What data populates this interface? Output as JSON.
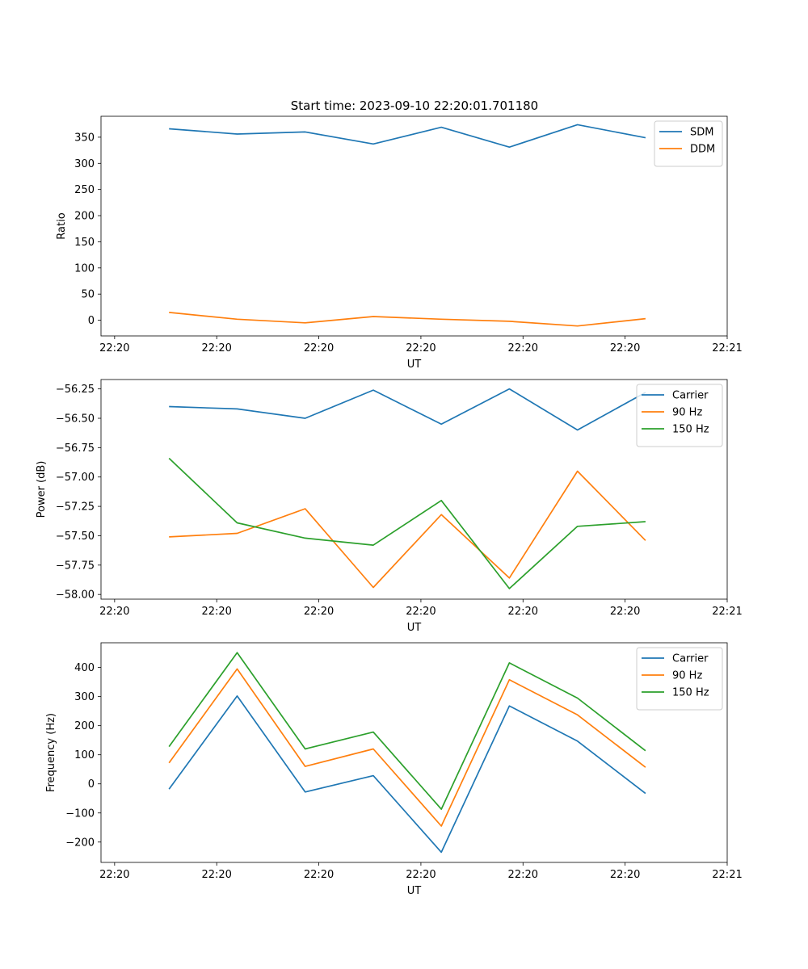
{
  "title": "Start time: 2023-09-10 22:20:01.701180",
  "colors": {
    "blue": "#1f77b4",
    "orange": "#ff7f0e",
    "green": "#2ca02c"
  },
  "chart_data": [
    {
      "type": "line",
      "xlabel": "UT",
      "ylabel": "Ratio",
      "x": [
        1,
        2,
        3,
        4,
        5,
        6,
        7,
        8
      ],
      "xlim": [
        0,
        9.2
      ],
      "xticks": [
        0.2,
        1.7,
        3.2,
        4.7,
        6.2,
        7.7,
        9.2
      ],
      "xticklabels": [
        "22:20",
        "22:20",
        "22:20",
        "22:20",
        "22:20",
        "22:20",
        "22:21"
      ],
      "ylim": [
        -30,
        390
      ],
      "yticks": [
        0,
        50,
        100,
        150,
        200,
        250,
        300,
        350
      ],
      "yticklabels": [
        "0",
        "50",
        "100",
        "150",
        "200",
        "250",
        "300",
        "350"
      ],
      "legend": "top-right",
      "series": [
        {
          "name": "SDM",
          "color": "#1f77b4",
          "values": [
            366,
            356,
            360,
            337,
            369,
            331,
            374,
            349
          ]
        },
        {
          "name": "DDM",
          "color": "#ff7f0e",
          "values": [
            15,
            2,
            -5,
            7,
            2,
            -2,
            -11,
            3
          ]
        }
      ]
    },
    {
      "type": "line",
      "xlabel": "UT",
      "ylabel": "Power (dB)",
      "x": [
        1,
        2,
        3,
        4,
        5,
        6,
        7,
        8
      ],
      "xlim": [
        0,
        9.2
      ],
      "xticks": [
        0.2,
        1.7,
        3.2,
        4.7,
        6.2,
        7.7,
        9.2
      ],
      "xticklabels": [
        "22:20",
        "22:20",
        "22:20",
        "22:20",
        "22:20",
        "22:20",
        "22:21"
      ],
      "ylim": [
        -58.04,
        -56.17
      ],
      "yticks": [
        -56.25,
        -56.5,
        -56.75,
        -57.0,
        -57.25,
        -57.5,
        -57.75,
        -58.0
      ],
      "yticklabels": [
        "−56.25",
        "−56.50",
        "−56.75",
        "−57.00",
        "−57.25",
        "−57.50",
        "−57.75",
        "−58.00"
      ],
      "legend": "top-right",
      "series": [
        {
          "name": "Carrier",
          "color": "#1f77b4",
          "values": [
            -56.4,
            -56.42,
            -56.5,
            -56.26,
            -56.55,
            -56.25,
            -56.6,
            -56.28
          ]
        },
        {
          "name": "90 Hz",
          "color": "#ff7f0e",
          "values": [
            -57.51,
            -57.48,
            -57.27,
            -57.94,
            -57.32,
            -57.86,
            -56.95,
            -57.54
          ]
        },
        {
          "name": "150 Hz",
          "color": "#2ca02c",
          "values": [
            -56.84,
            -57.39,
            -57.52,
            -57.58,
            -57.2,
            -57.95,
            -57.42,
            -57.38
          ]
        }
      ]
    },
    {
      "type": "line",
      "xlabel": "UT",
      "ylabel": "Frequency (Hz)",
      "x": [
        1,
        2,
        3,
        4,
        5,
        6,
        7,
        8
      ],
      "xlim": [
        0,
        9.2
      ],
      "xticks": [
        0.2,
        1.7,
        3.2,
        4.7,
        6.2,
        7.7,
        9.2
      ],
      "xticklabels": [
        "22:20",
        "22:20",
        "22:20",
        "22:20",
        "22:20",
        "22:20",
        "22:21"
      ],
      "ylim": [
        -270,
        485
      ],
      "yticks": [
        -200,
        -100,
        0,
        100,
        200,
        300,
        400
      ],
      "yticklabels": [
        "−200",
        "−100",
        "0",
        "100",
        "200",
        "300",
        "400"
      ],
      "legend": "top-right",
      "series": [
        {
          "name": "Carrier",
          "color": "#1f77b4",
          "values": [
            -18,
            302,
            -28,
            28,
            -235,
            268,
            147,
            -33
          ]
        },
        {
          "name": "90 Hz",
          "color": "#ff7f0e",
          "values": [
            72,
            395,
            60,
            120,
            -145,
            358,
            237,
            57
          ]
        },
        {
          "name": "150 Hz",
          "color": "#2ca02c",
          "values": [
            128,
            451,
            120,
            178,
            -87,
            416,
            295,
            114
          ]
        }
      ]
    }
  ]
}
